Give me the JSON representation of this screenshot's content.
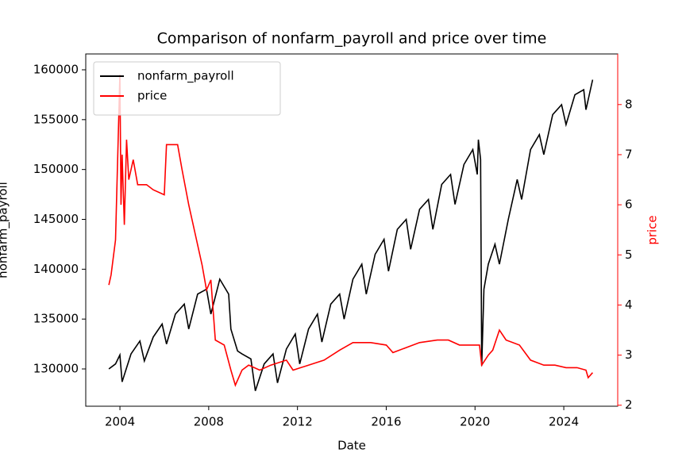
{
  "chart_data": {
    "type": "line",
    "title": "Comparison of nonfarm_payroll and price over time",
    "xlabel": "Date",
    "ylabel": "nonfarm_payroll",
    "y2label": "price",
    "xlim": [
      2002.46,
      2026.43
    ],
    "xticks": [
      2004,
      2008,
      2012,
      2016,
      2020,
      2024
    ],
    "ylim": [
      126260,
      161590
    ],
    "yticks": [
      130000,
      135000,
      140000,
      145000,
      150000,
      155000,
      160000
    ],
    "y2lim": [
      1.98,
      9.01
    ],
    "y2ticks": [
      2,
      3,
      4,
      5,
      6,
      7,
      8
    ],
    "legend": "upper left",
    "y2color": "#ff0000",
    "series": [
      {
        "name": "nonfarm_payroll",
        "color": "#000000",
        "x": [
          2003.5,
          2003.8,
          2004.0,
          2004.1,
          2004.5,
          2004.9,
          2005.1,
          2005.5,
          2005.9,
          2006.1,
          2006.5,
          2006.9,
          2007.1,
          2007.5,
          2007.9,
          2008.1,
          2008.5,
          2008.9,
          2009.0,
          2009.3,
          2009.5,
          2009.9,
          2010.1,
          2010.5,
          2010.9,
          2011.1,
          2011.5,
          2011.9,
          2012.1,
          2012.5,
          2012.9,
          2013.1,
          2013.5,
          2013.9,
          2014.1,
          2014.5,
          2014.9,
          2015.1,
          2015.5,
          2015.9,
          2016.1,
          2016.5,
          2016.9,
          2017.1,
          2017.5,
          2017.9,
          2018.1,
          2018.5,
          2018.9,
          2019.1,
          2019.5,
          2019.9,
          2020.1,
          2020.15,
          2020.25,
          2020.3,
          2020.4,
          2020.6,
          2020.9,
          2021.1,
          2021.5,
          2021.9,
          2022.1,
          2022.5,
          2022.9,
          2023.1,
          2023.5,
          2023.9,
          2024.1,
          2024.5,
          2024.9,
          2025.0,
          2025.3
        ],
        "values": [
          130000,
          130500,
          131400,
          128700,
          131500,
          132800,
          130800,
          133200,
          134500,
          132500,
          135500,
          136500,
          134000,
          137500,
          138000,
          135500,
          139000,
          137500,
          134000,
          131800,
          131500,
          131000,
          127800,
          130500,
          131500,
          128600,
          132000,
          133500,
          130500,
          134000,
          135500,
          132700,
          136500,
          137500,
          135000,
          139000,
          140500,
          137500,
          141500,
          143000,
          139800,
          144000,
          145000,
          142000,
          146000,
          147000,
          144000,
          148500,
          149500,
          146500,
          150500,
          152000,
          149500,
          153000,
          151000,
          130300,
          138000,
          140500,
          142500,
          140500,
          145000,
          149000,
          147000,
          152000,
          153500,
          151500,
          155500,
          156500,
          154500,
          157500,
          158000,
          156000,
          159000
        ]
      },
      {
        "name": "price",
        "color": "#ff0000",
        "axis": "y2",
        "x": [
          2003.5,
          2003.6,
          2003.8,
          2004.0,
          2004.05,
          2004.1,
          2004.2,
          2004.3,
          2004.4,
          2004.6,
          2004.8,
          2005.2,
          2005.5,
          2006.0,
          2006.1,
          2006.6,
          2006.8,
          2007.1,
          2007.4,
          2007.7,
          2007.9,
          2008.1,
          2008.3,
          2008.7,
          2009.0,
          2009.2,
          2009.5,
          2009.8,
          2010.3,
          2010.8,
          2011.5,
          2011.8,
          2012.5,
          2013.2,
          2013.9,
          2014.5,
          2015.3,
          2016.0,
          2016.3,
          2016.9,
          2017.5,
          2018.3,
          2018.8,
          2019.3,
          2019.9,
          2020.2,
          2020.3,
          2020.6,
          2020.8,
          2021.1,
          2021.4,
          2022.0,
          2022.5,
          2023.1,
          2023.6,
          2024.1,
          2024.6,
          2025.0,
          2025.1,
          2025.3
        ],
        "values": [
          4.4,
          4.6,
          5.3,
          8.6,
          6.0,
          7.0,
          5.6,
          7.3,
          6.5,
          6.9,
          6.4,
          6.4,
          6.3,
          6.2,
          7.2,
          7.2,
          6.7,
          6.0,
          5.4,
          4.8,
          4.3,
          4.5,
          3.3,
          3.2,
          2.7,
          2.4,
          2.7,
          2.8,
          2.7,
          2.8,
          2.9,
          2.7,
          2.8,
          2.9,
          3.1,
          3.25,
          3.25,
          3.2,
          3.05,
          3.15,
          3.25,
          3.3,
          3.3,
          3.2,
          3.2,
          3.2,
          2.8,
          3.0,
          3.1,
          3.5,
          3.3,
          3.2,
          2.9,
          2.8,
          2.8,
          2.75,
          2.75,
          2.7,
          2.55,
          2.65
        ]
      }
    ]
  }
}
